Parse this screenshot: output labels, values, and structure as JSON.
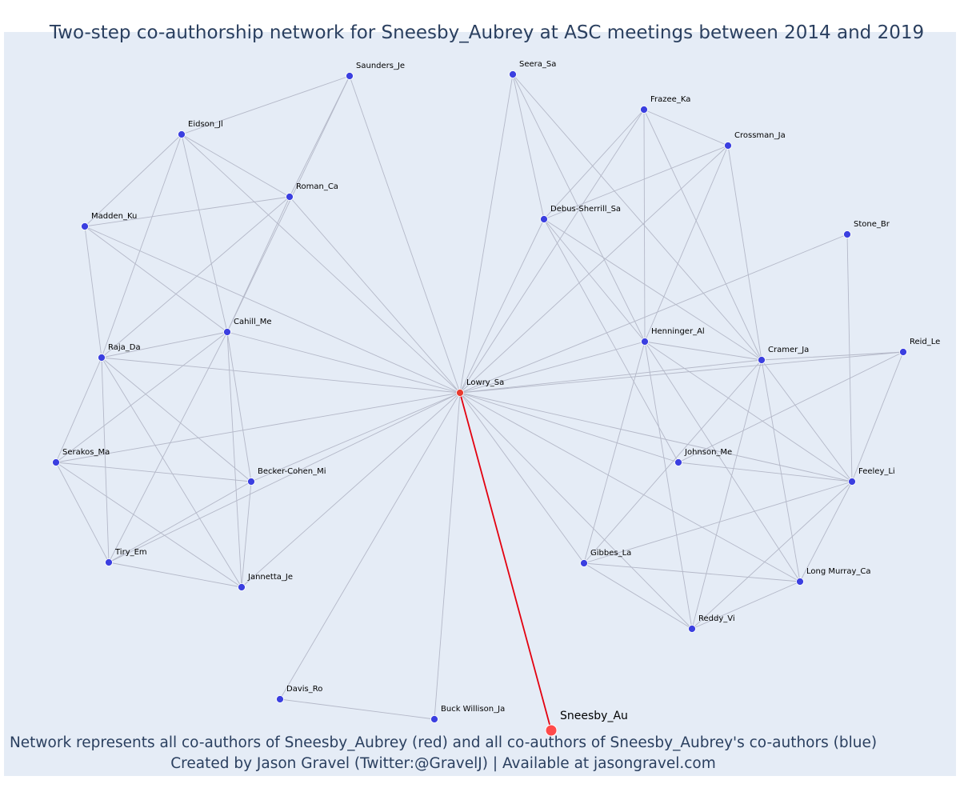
{
  "title": "Two-step co-authorship network for Sneesby_Aubrey at ASC meetings between 2014 and 2019",
  "caption_lines": [
    "Network represents all co-authors of Sneesby_Aubrey (red) and all co-authors of Sneesby_Aubrey's co-authors (blue)",
    "Created by Jason Gravel (Twitter:@GravelJ) | Available at jasongravel.com"
  ],
  "colors": {
    "background": "#e5ecf6",
    "edge": "#b4b8c8",
    "ego_edge": "#e3000f",
    "coauthor_node": "#3b3fe0",
    "ego_node": "#ff4a4a",
    "direct_coauthor_node": "#e83a2e",
    "text": "#2a3f5f"
  },
  "nodes": [
    {
      "id": "Sneesby_Au",
      "label": "Sneesby_Au",
      "role": "ego"
    },
    {
      "id": "Lowry_Sa",
      "label": "Lowry_Sa",
      "role": "direct"
    },
    {
      "id": "Saunders_Je",
      "label": "Saunders_Je",
      "role": "second"
    },
    {
      "id": "Seera_Sa",
      "label": "Seera_Sa",
      "role": "second"
    },
    {
      "id": "Frazee_Ka",
      "label": "Frazee_Ka",
      "role": "second"
    },
    {
      "id": "Crossman_Ja",
      "label": "Crossman_Ja",
      "role": "second"
    },
    {
      "id": "Eidson_Jl",
      "label": "Eidson_Jl",
      "role": "second"
    },
    {
      "id": "Roman_Ca",
      "label": "Roman_Ca",
      "role": "second"
    },
    {
      "id": "Debus-Sherrill_Sa",
      "label": "Debus-Sherrill_Sa",
      "role": "second"
    },
    {
      "id": "Stone_Br",
      "label": "Stone_Br",
      "role": "second"
    },
    {
      "id": "Madden_Ku",
      "label": "Madden_Ku",
      "role": "second"
    },
    {
      "id": "Cahill_Me",
      "label": "Cahill_Me",
      "role": "second"
    },
    {
      "id": "Henninger_Al",
      "label": "Henninger_Al",
      "role": "second"
    },
    {
      "id": "Cramer_Ja",
      "label": "Cramer_Ja",
      "role": "second"
    },
    {
      "id": "Reid_Le",
      "label": "Reid_Le",
      "role": "second"
    },
    {
      "id": "Raja_Da",
      "label": "Raja_Da",
      "role": "second"
    },
    {
      "id": "Serakos_Ma",
      "label": "Serakos_Ma",
      "role": "second"
    },
    {
      "id": "Johnson_Me",
      "label": "Johnson_Me",
      "role": "second"
    },
    {
      "id": "Becker-Cohen_Mi",
      "label": "Becker-Cohen_Mi",
      "role": "second"
    },
    {
      "id": "Feeley_Li",
      "label": "Feeley_Li",
      "role": "second"
    },
    {
      "id": "Tiry_Em",
      "label": "Tiry_Em",
      "role": "second"
    },
    {
      "id": "Gibbes_La",
      "label": "Gibbes_La",
      "role": "second"
    },
    {
      "id": "Long Murray_Ca",
      "label": "Long Murray_Ca",
      "role": "second"
    },
    {
      "id": "Jannetta_Je",
      "label": "Jannetta_Je",
      "role": "second"
    },
    {
      "id": "Reddy_Vi",
      "label": "Reddy_Vi",
      "role": "second"
    },
    {
      "id": "Davis_Ro",
      "label": "Davis_Ro",
      "role": "second"
    },
    {
      "id": "Buck Willison_Ja",
      "label": "Buck Willison_Ja",
      "role": "second"
    }
  ],
  "edges": [
    [
      "Sneesby_Au",
      "Lowry_Sa"
    ],
    [
      "Lowry_Sa",
      "Saunders_Je"
    ],
    [
      "Lowry_Sa",
      "Seera_Sa"
    ],
    [
      "Lowry_Sa",
      "Frazee_Ka"
    ],
    [
      "Lowry_Sa",
      "Crossman_Ja"
    ],
    [
      "Lowry_Sa",
      "Eidson_Jl"
    ],
    [
      "Lowry_Sa",
      "Roman_Ca"
    ],
    [
      "Lowry_Sa",
      "Debus-Sherrill_Sa"
    ],
    [
      "Lowry_Sa",
      "Stone_Br"
    ],
    [
      "Lowry_Sa",
      "Madden_Ku"
    ],
    [
      "Lowry_Sa",
      "Cahill_Me"
    ],
    [
      "Lowry_Sa",
      "Henninger_Al"
    ],
    [
      "Lowry_Sa",
      "Cramer_Ja"
    ],
    [
      "Lowry_Sa",
      "Reid_Le"
    ],
    [
      "Lowry_Sa",
      "Raja_Da"
    ],
    [
      "Lowry_Sa",
      "Serakos_Ma"
    ],
    [
      "Lowry_Sa",
      "Johnson_Me"
    ],
    [
      "Lowry_Sa",
      "Becker-Cohen_Mi"
    ],
    [
      "Lowry_Sa",
      "Feeley_Li"
    ],
    [
      "Lowry_Sa",
      "Tiry_Em"
    ],
    [
      "Lowry_Sa",
      "Gibbes_La"
    ],
    [
      "Lowry_Sa",
      "Long Murray_Ca"
    ],
    [
      "Lowry_Sa",
      "Jannetta_Je"
    ],
    [
      "Lowry_Sa",
      "Reddy_Vi"
    ],
    [
      "Lowry_Sa",
      "Davis_Ro"
    ],
    [
      "Lowry_Sa",
      "Buck Willison_Ja"
    ],
    [
      "Saunders_Je",
      "Roman_Ca"
    ],
    [
      "Saunders_Je",
      "Eidson_Jl"
    ],
    [
      "Saunders_Je",
      "Cahill_Me"
    ],
    [
      "Eidson_Jl",
      "Madden_Ku"
    ],
    [
      "Eidson_Jl",
      "Roman_Ca"
    ],
    [
      "Eidson_Jl",
      "Cahill_Me"
    ],
    [
      "Eidson_Jl",
      "Raja_Da"
    ],
    [
      "Roman_Ca",
      "Madden_Ku"
    ],
    [
      "Roman_Ca",
      "Cahill_Me"
    ],
    [
      "Roman_Ca",
      "Raja_Da"
    ],
    [
      "Madden_Ku",
      "Cahill_Me"
    ],
    [
      "Madden_Ku",
      "Raja_Da"
    ],
    [
      "Cahill_Me",
      "Raja_Da"
    ],
    [
      "Cahill_Me",
      "Serakos_Ma"
    ],
    [
      "Cahill_Me",
      "Becker-Cohen_Mi"
    ],
    [
      "Cahill_Me",
      "Tiry_Em"
    ],
    [
      "Cahill_Me",
      "Jannetta_Je"
    ],
    [
      "Raja_Da",
      "Serakos_Ma"
    ],
    [
      "Raja_Da",
      "Becker-Cohen_Mi"
    ],
    [
      "Raja_Da",
      "Tiry_Em"
    ],
    [
      "Raja_Da",
      "Jannetta_Je"
    ],
    [
      "Serakos_Ma",
      "Becker-Cohen_Mi"
    ],
    [
      "Serakos_Ma",
      "Tiry_Em"
    ],
    [
      "Serakos_Ma",
      "Jannetta_Je"
    ],
    [
      "Becker-Cohen_Mi",
      "Tiry_Em"
    ],
    [
      "Becker-Cohen_Mi",
      "Jannetta_Je"
    ],
    [
      "Tiry_Em",
      "Jannetta_Je"
    ],
    [
      "Seera_Sa",
      "Debus-Sherrill_Sa"
    ],
    [
      "Seera_Sa",
      "Henninger_Al"
    ],
    [
      "Seera_Sa",
      "Cramer_Ja"
    ],
    [
      "Frazee_Ka",
      "Crossman_Ja"
    ],
    [
      "Frazee_Ka",
      "Debus-Sherrill_Sa"
    ],
    [
      "Frazee_Ka",
      "Henninger_Al"
    ],
    [
      "Frazee_Ka",
      "Cramer_Ja"
    ],
    [
      "Crossman_Ja",
      "Debus-Sherrill_Sa"
    ],
    [
      "Crossman_Ja",
      "Henninger_Al"
    ],
    [
      "Crossman_Ja",
      "Cramer_Ja"
    ],
    [
      "Debus-Sherrill_Sa",
      "Henninger_Al"
    ],
    [
      "Debus-Sherrill_Sa",
      "Cramer_Ja"
    ],
    [
      "Debus-Sherrill_Sa",
      "Johnson_Me"
    ],
    [
      "Stone_Br",
      "Feeley_Li"
    ],
    [
      "Henninger_Al",
      "Cramer_Ja"
    ],
    [
      "Henninger_Al",
      "Feeley_Li"
    ],
    [
      "Henninger_Al",
      "Gibbes_La"
    ],
    [
      "Henninger_Al",
      "Long Murray_Ca"
    ],
    [
      "Henninger_Al",
      "Reddy_Vi"
    ],
    [
      "Cramer_Ja",
      "Reid_Le"
    ],
    [
      "Cramer_Ja",
      "Feeley_Li"
    ],
    [
      "Cramer_Ja",
      "Gibbes_La"
    ],
    [
      "Cramer_Ja",
      "Long Murray_Ca"
    ],
    [
      "Cramer_Ja",
      "Reddy_Vi"
    ],
    [
      "Reid_Le",
      "Johnson_Me"
    ],
    [
      "Reid_Le",
      "Feeley_Li"
    ],
    [
      "Johnson_Me",
      "Feeley_Li"
    ],
    [
      "Feeley_Li",
      "Gibbes_La"
    ],
    [
      "Feeley_Li",
      "Long Murray_Ca"
    ],
    [
      "Feeley_Li",
      "Reddy_Vi"
    ],
    [
      "Gibbes_La",
      "Long Murray_Ca"
    ],
    [
      "Gibbes_La",
      "Reddy_Vi"
    ],
    [
      "Long Murray_Ca",
      "Reddy_Vi"
    ],
    [
      "Davis_Ro",
      "Buck Willison_Ja"
    ]
  ]
}
